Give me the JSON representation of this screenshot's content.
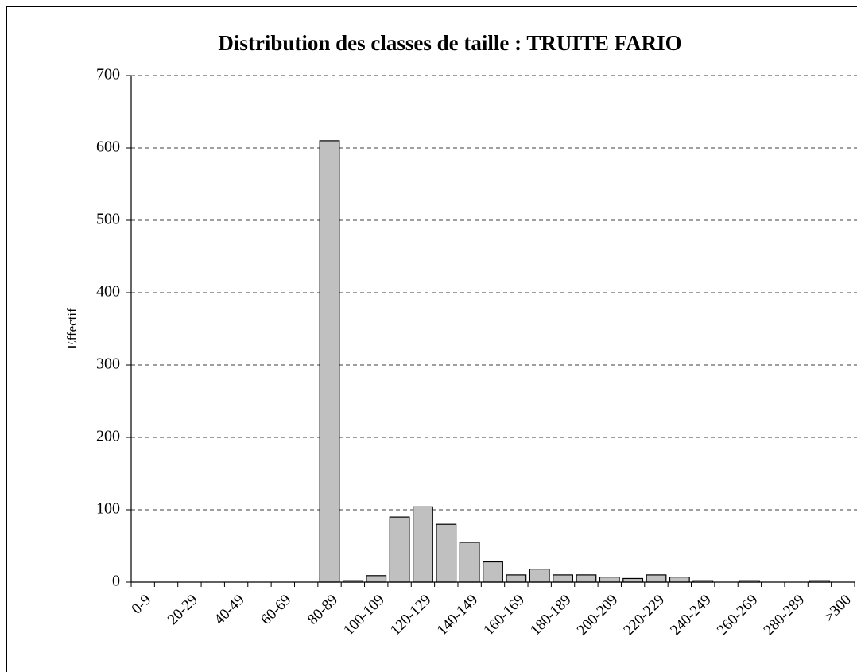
{
  "chart_data": {
    "type": "bar",
    "title": "Distribution des classes de taille : TRUITE FARIO",
    "y_label": "Effectif",
    "categories": [
      "0-9",
      null,
      "20-29",
      null,
      "40-49",
      null,
      "60-69",
      null,
      "80-89",
      null,
      "100-109",
      null,
      "120-129",
      null,
      "140-149",
      null,
      "160-169",
      null,
      "180-189",
      null,
      "200-209",
      null,
      "220-229",
      null,
      "240-249",
      null,
      "260-269",
      null,
      "280-289",
      null,
      ">300"
    ],
    "values": [
      0,
      0,
      0,
      0,
      0,
      0,
      0,
      0,
      610,
      2,
      9,
      90,
      104,
      80,
      55,
      28,
      10,
      18,
      10,
      10,
      7,
      5,
      10,
      7,
      2,
      0,
      2,
      0,
      0,
      2,
      0
    ],
    "color": "#c0c0c0",
    "ylim": [
      0,
      700
    ],
    "yticks": [
      0,
      100,
      200,
      300,
      400,
      500,
      600,
      700
    ],
    "grid": true
  }
}
